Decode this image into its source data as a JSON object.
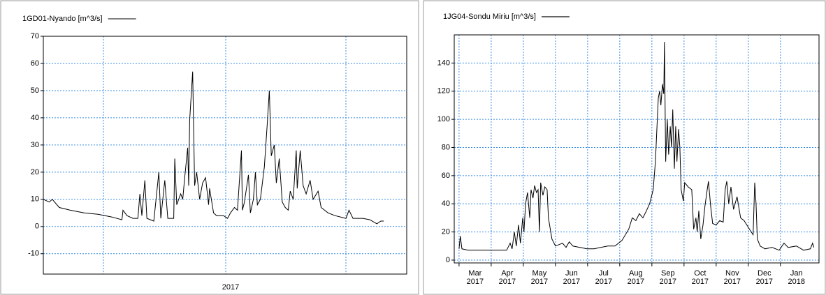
{
  "chart_data": [
    {
      "type": "line",
      "xlabel": "2017",
      "xlim": [
        0,
        365
      ],
      "ylim": [
        -17.5,
        70
      ],
      "yticks": [
        -10,
        0,
        10,
        20,
        30,
        40,
        50,
        60,
        70
      ],
      "grid": true,
      "x": [
        0,
        6,
        9,
        16,
        27,
        41,
        55,
        69,
        79,
        80,
        84,
        90,
        95,
        97,
        99,
        102,
        104,
        111,
        116,
        118,
        122,
        125,
        131,
        132,
        134,
        138,
        140,
        142,
        145,
        146,
        147,
        150,
        152,
        154,
        157,
        160,
        163,
        166,
        167,
        171,
        174,
        181,
        185,
        188,
        192,
        195,
        199,
        200,
        202,
        206,
        208,
        211,
        213,
        215,
        218,
        222,
        225,
        227,
        229,
        232,
        234,
        237,
        240,
        243,
        246,
        248,
        251,
        254,
        255,
        258,
        261,
        264,
        268,
        271,
        276,
        279,
        286,
        293,
        304,
        307,
        311,
        321,
        328,
        335,
        339,
        342
      ],
      "series": [
        {
          "name": "1GD01-Nyando [m^3/s]",
          "color": "#000000",
          "values": [
            10,
            9,
            10,
            7,
            6,
            5,
            4.5,
            3.5,
            2.5,
            6,
            4,
            3,
            3,
            12,
            4,
            17,
            3,
            2,
            20,
            3,
            17,
            3,
            3,
            25,
            8,
            12,
            10,
            18,
            29,
            15,
            39,
            57,
            15,
            20,
            10,
            16,
            18,
            8,
            14,
            5,
            4,
            4,
            3,
            5,
            7,
            6,
            28,
            6,
            9,
            19,
            5,
            10,
            20,
            8,
            10,
            22,
            38,
            50,
            26,
            30,
            16,
            25,
            9,
            7,
            6,
            13,
            10,
            28,
            14,
            28,
            15,
            12,
            17,
            10,
            13,
            7,
            5,
            4,
            3,
            6,
            3,
            3,
            2.5,
            1,
            2,
            2
          ]
        }
      ]
    },
    {
      "type": "line",
      "xlim": [
        -0.15,
        11.2
      ],
      "ylim": [
        -2,
        160
      ],
      "yticks": [
        0,
        20,
        40,
        60,
        80,
        100,
        120,
        140
      ],
      "grid": true,
      "xticks": [
        {
          "value": 0.5,
          "label": "Mar\n2017"
        },
        {
          "value": 1.5,
          "label": "Apr\n2017"
        },
        {
          "value": 2.5,
          "label": "May\n2017"
        },
        {
          "value": 3.5,
          "label": "Jun\n2017"
        },
        {
          "value": 4.5,
          "label": "Jul\n2017"
        },
        {
          "value": 5.5,
          "label": "Aug\n2017"
        },
        {
          "value": 6.5,
          "label": "Sep\n2017"
        },
        {
          "value": 7.5,
          "label": "Oct\n2017"
        },
        {
          "value": 8.5,
          "label": "Nov\n2017"
        },
        {
          "value": 9.5,
          "label": "Dec\n2017"
        },
        {
          "value": 10.5,
          "label": "Jan\n2018"
        }
      ],
      "x": [
        0,
        0.04,
        0.09,
        0.28,
        0.72,
        1.15,
        1.48,
        1.59,
        1.65,
        1.72,
        1.78,
        1.85,
        1.91,
        1.98,
        2.02,
        2.07,
        2.13,
        2.2,
        2.24,
        2.3,
        2.35,
        2.41,
        2.46,
        2.5,
        2.54,
        2.61,
        2.67,
        2.74,
        2.78,
        2.89,
        3,
        3.22,
        3.33,
        3.43,
        3.54,
        3.76,
        3.98,
        4.2,
        4.41,
        4.63,
        4.85,
        5.07,
        5.28,
        5.39,
        5.5,
        5.61,
        5.72,
        5.83,
        5.93,
        6.04,
        6.11,
        6.15,
        6.2,
        6.24,
        6.28,
        6.33,
        6.37,
        6.39,
        6.43,
        6.48,
        6.52,
        6.57,
        6.61,
        6.65,
        6.7,
        6.74,
        6.78,
        6.83,
        6.87,
        6.91,
        6.98,
        7.02,
        7.13,
        7.24,
        7.3,
        7.37,
        7.41,
        7.46,
        7.52,
        7.59,
        7.65,
        7.72,
        7.76,
        7.83,
        7.89,
        8,
        8.11,
        8.22,
        8.28,
        8.33,
        8.39,
        8.46,
        8.54,
        8.65,
        8.76,
        8.87,
        8.98,
        9.09,
        9.15,
        9.2,
        9.24,
        9.28,
        9.37,
        9.52,
        9.74,
        9.96,
        10.11,
        10.24,
        10.5,
        10.72,
        10.93,
        11,
        11.04
      ],
      "series": [
        {
          "name": "1JG04-Sondu Miriu [m^3/s]",
          "color": "#000000",
          "values": [
            8,
            17,
            8,
            7,
            7,
            7,
            7,
            12,
            8,
            20,
            10,
            25,
            12,
            30,
            20,
            40,
            48,
            30,
            50,
            44,
            53,
            48,
            50,
            20,
            55,
            46,
            52,
            50,
            30,
            15,
            10,
            12,
            9,
            13,
            10,
            9,
            8,
            8,
            9,
            10,
            10,
            14,
            22,
            30,
            28,
            33,
            30,
            35,
            40,
            50,
            70,
            90,
            115,
            120,
            110,
            125,
            118,
            155,
            70,
            100,
            75,
            95,
            80,
            107,
            65,
            95,
            70,
            93,
            80,
            50,
            42,
            55,
            52,
            50,
            22,
            30,
            20,
            35,
            15,
            25,
            38,
            50,
            56,
            38,
            26,
            25,
            28,
            27,
            50,
            56,
            40,
            52,
            36,
            45,
            30,
            28,
            24,
            20,
            18,
            55,
            40,
            15,
            10,
            8,
            9,
            7,
            12,
            9,
            10,
            7,
            8,
            12,
            9
          ]
        }
      ]
    }
  ]
}
